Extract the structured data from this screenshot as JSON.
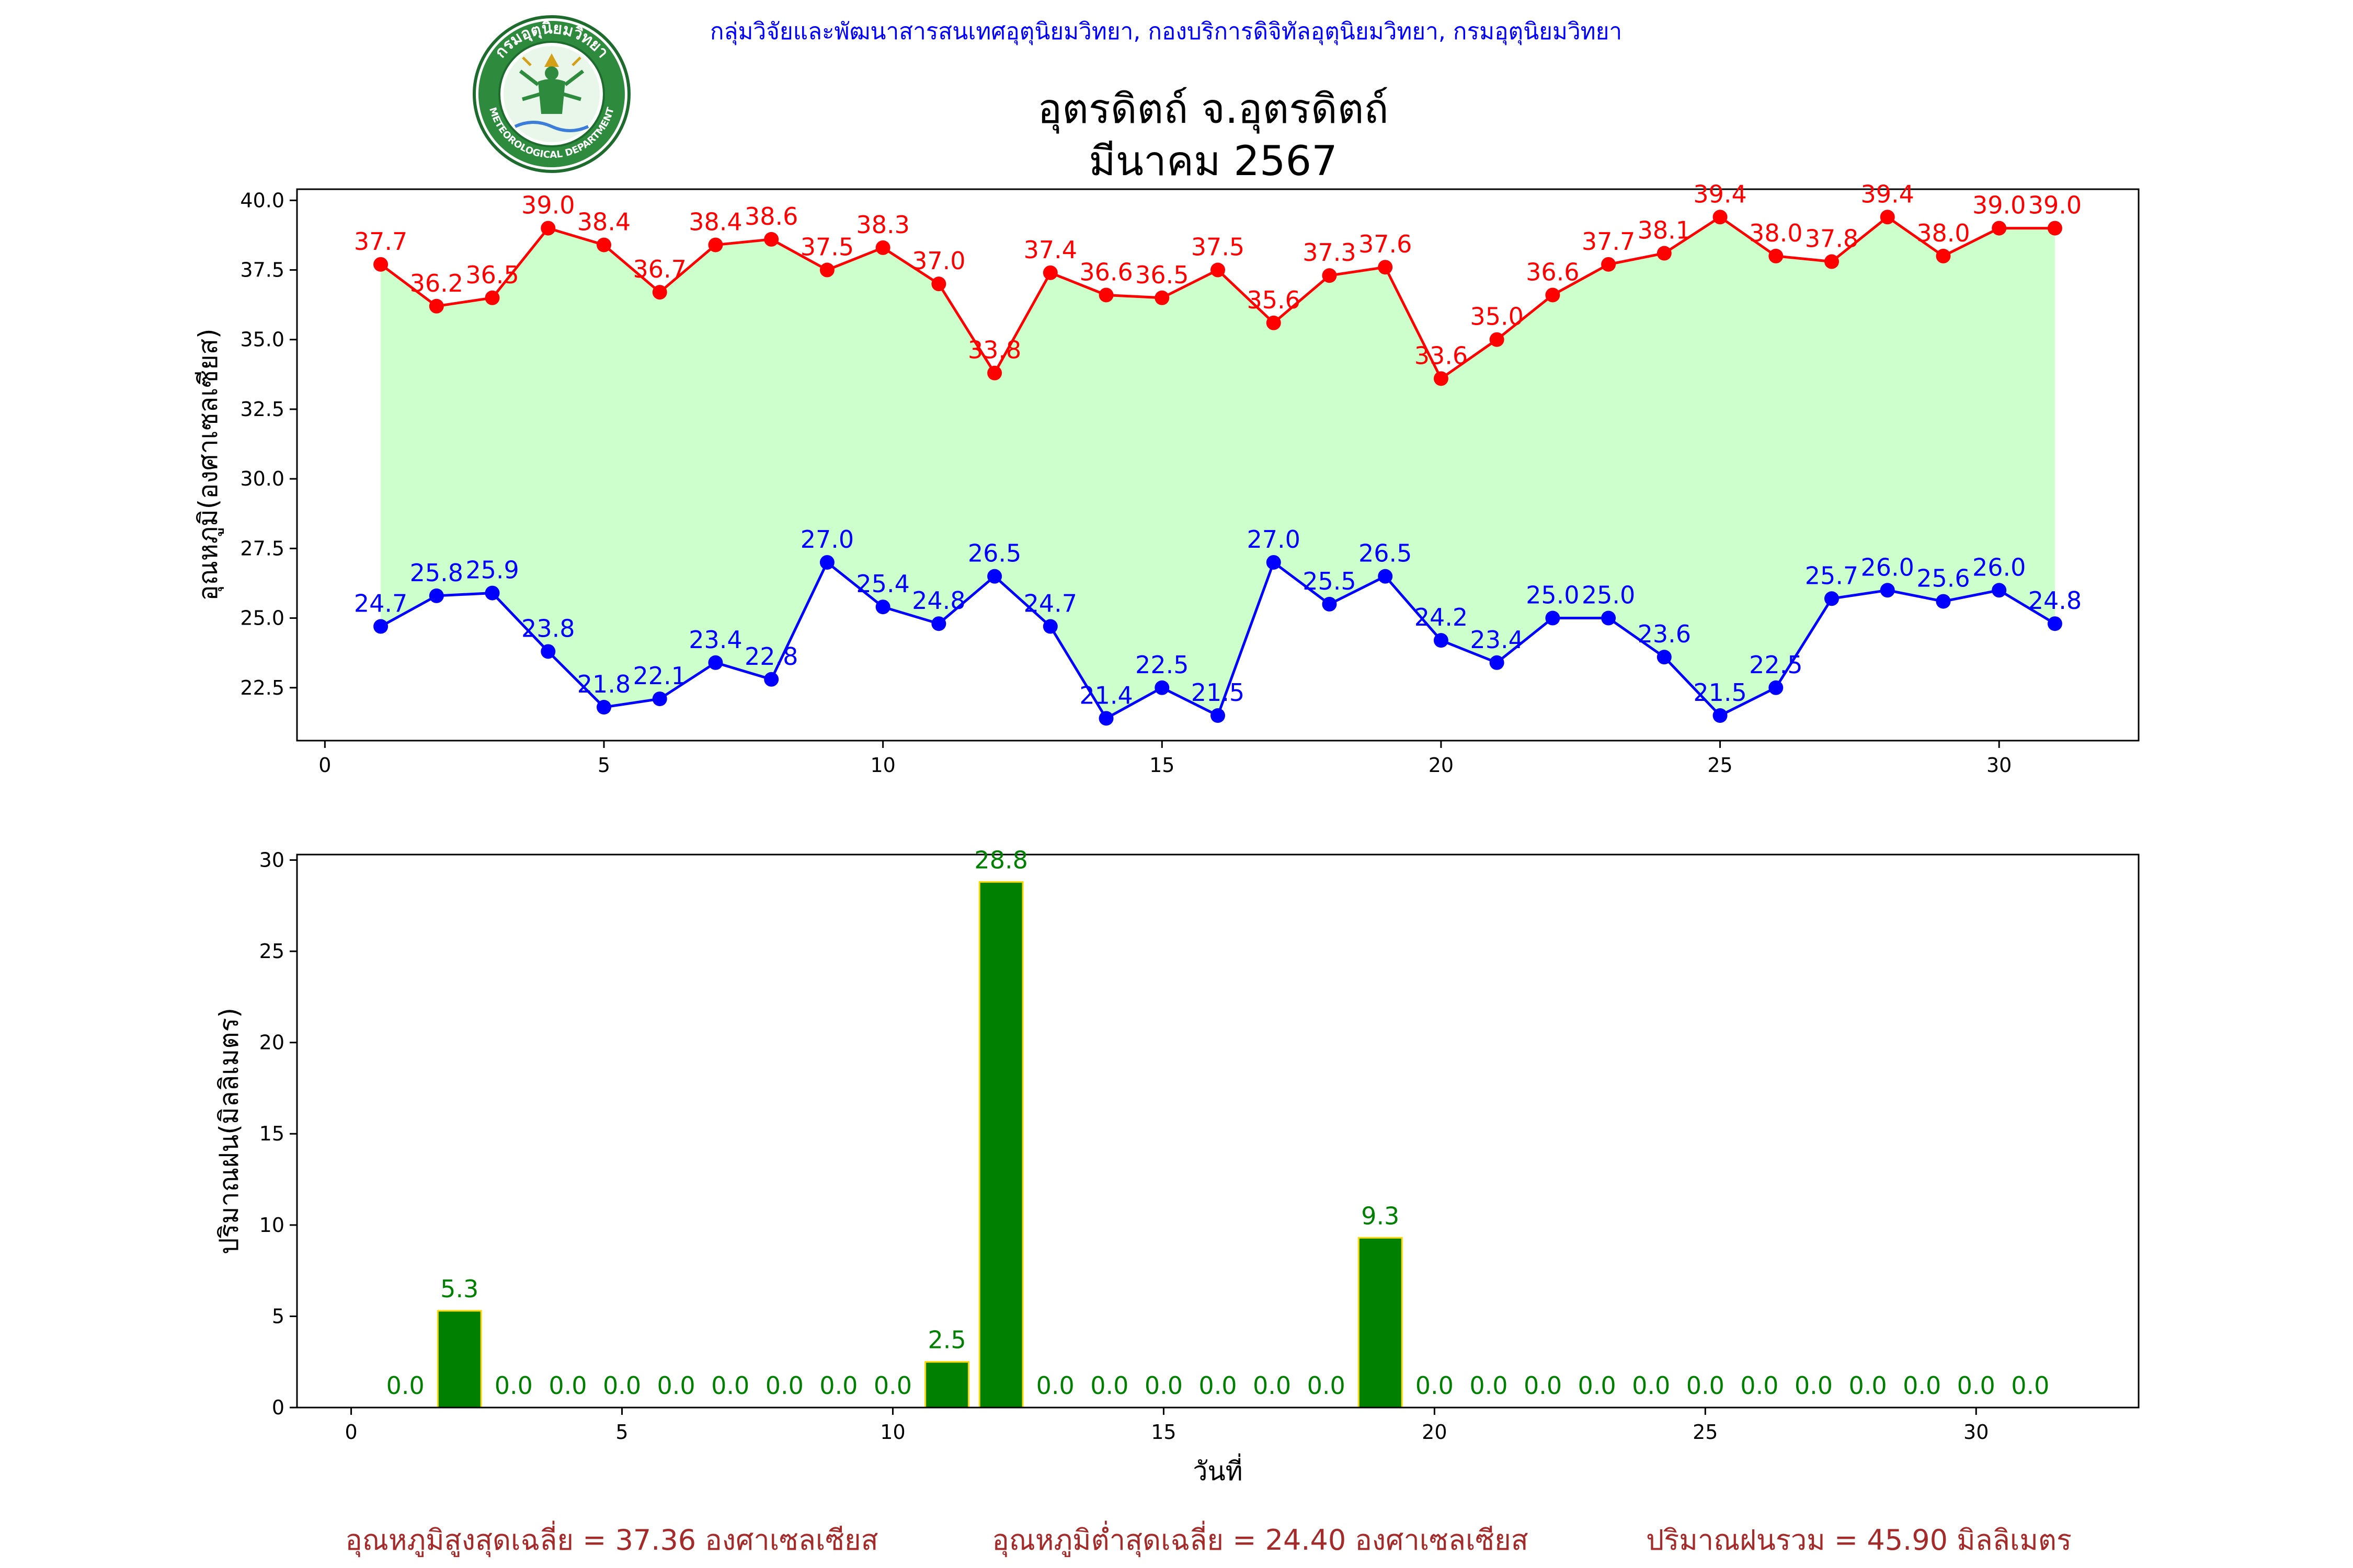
{
  "header": {
    "organization": "กลุ่มวิจัยและพัฒนาสารสนเทศอุตุนิยมวิทยา, กองบริการดิจิทัลอุตุนิยมวิทยา, กรมอุตุนิยมวิทยา",
    "title_line1": "อุตรดิตถ์ จ.อุตรดิตถ์",
    "title_line2": "มีนาคม 2567"
  },
  "logo": {
    "text_top": "กรมอุตุนิยมวิทยา",
    "text_bottom": "METEOROLOGICAL DEPARTMENT"
  },
  "colors": {
    "org_text": "#0000ff",
    "max_series": "#ff0000",
    "min_series": "#0000ff",
    "fill_between": "#ccffcc",
    "bar_fill": "#008000",
    "bar_edge": "#ffd700",
    "summary_text": "#a52a2a"
  },
  "chart_data": [
    {
      "type": "line",
      "ylabel": "อุณหภูมิ(องศาเซลเซียส)",
      "xlabel": "",
      "xlim": [
        -0.5,
        32.5
      ],
      "ylim": [
        20.6,
        40.4
      ],
      "x_ticks": [
        0,
        5,
        10,
        15,
        20,
        25,
        30
      ],
      "y_ticks": [
        22.5,
        25.0,
        27.5,
        30.0,
        32.5,
        35.0,
        37.5,
        40.0
      ],
      "grid": false,
      "fill_between": true,
      "x": [
        1,
        2,
        3,
        4,
        5,
        6,
        7,
        8,
        9,
        10,
        11,
        12,
        13,
        14,
        15,
        16,
        17,
        18,
        19,
        20,
        21,
        22,
        23,
        24,
        25,
        26,
        27,
        28,
        29,
        30,
        31
      ],
      "series": [
        {
          "values": [
            37.7,
            36.2,
            36.5,
            39.0,
            38.4,
            36.7,
            38.4,
            38.6,
            37.5,
            38.3,
            37.0,
            33.8,
            37.4,
            36.6,
            36.5,
            37.5,
            35.6,
            37.3,
            37.6,
            33.6,
            35.0,
            36.6,
            37.7,
            38.1,
            39.4,
            38.0,
            37.8,
            39.4,
            38.0,
            39.0,
            39.0
          ]
        },
        {
          "values": [
            24.7,
            25.8,
            25.9,
            23.8,
            21.8,
            22.1,
            23.4,
            22.8,
            27.0,
            25.4,
            24.8,
            26.5,
            24.7,
            21.4,
            22.5,
            21.5,
            27.0,
            25.5,
            26.5,
            24.2,
            23.4,
            25.0,
            25.0,
            23.6,
            21.5,
            22.5,
            25.7,
            26.0,
            25.6,
            26.0,
            24.8
          ]
        }
      ]
    },
    {
      "type": "bar",
      "ylabel": "ปริมาณฝน(มิลลิเมตร)",
      "xlabel": "วันที่",
      "xlim": [
        -1,
        33
      ],
      "ylim": [
        0,
        30.3
      ],
      "x_ticks": [
        0,
        5,
        10,
        15,
        20,
        25,
        30
      ],
      "y_ticks": [
        0,
        5,
        10,
        15,
        20,
        25,
        30
      ],
      "grid": false,
      "categories": [
        1,
        2,
        3,
        4,
        5,
        6,
        7,
        8,
        9,
        10,
        11,
        12,
        13,
        14,
        15,
        16,
        17,
        18,
        19,
        20,
        21,
        22,
        23,
        24,
        25,
        26,
        27,
        28,
        29,
        30,
        31
      ],
      "values": [
        0.0,
        5.3,
        0.0,
        0.0,
        0.0,
        0.0,
        0.0,
        0.0,
        0.0,
        0.0,
        2.5,
        28.8,
        0.0,
        0.0,
        0.0,
        0.0,
        0.0,
        0.0,
        9.3,
        0.0,
        0.0,
        0.0,
        0.0,
        0.0,
        0.0,
        0.0,
        0.0,
        0.0,
        0.0,
        0.0,
        0.0
      ]
    }
  ],
  "summary": {
    "avg_max": "อุณหภูมิสูงสุดเฉลี่ย = 37.36 องศาเซลเซียส",
    "avg_min": "อุณหภูมิต่ำสุดเฉลี่ย = 24.40 องศาเซลเซียส",
    "total_rain": "ปริมาณฝนรวม = 45.90 มิลลิเมตร"
  }
}
